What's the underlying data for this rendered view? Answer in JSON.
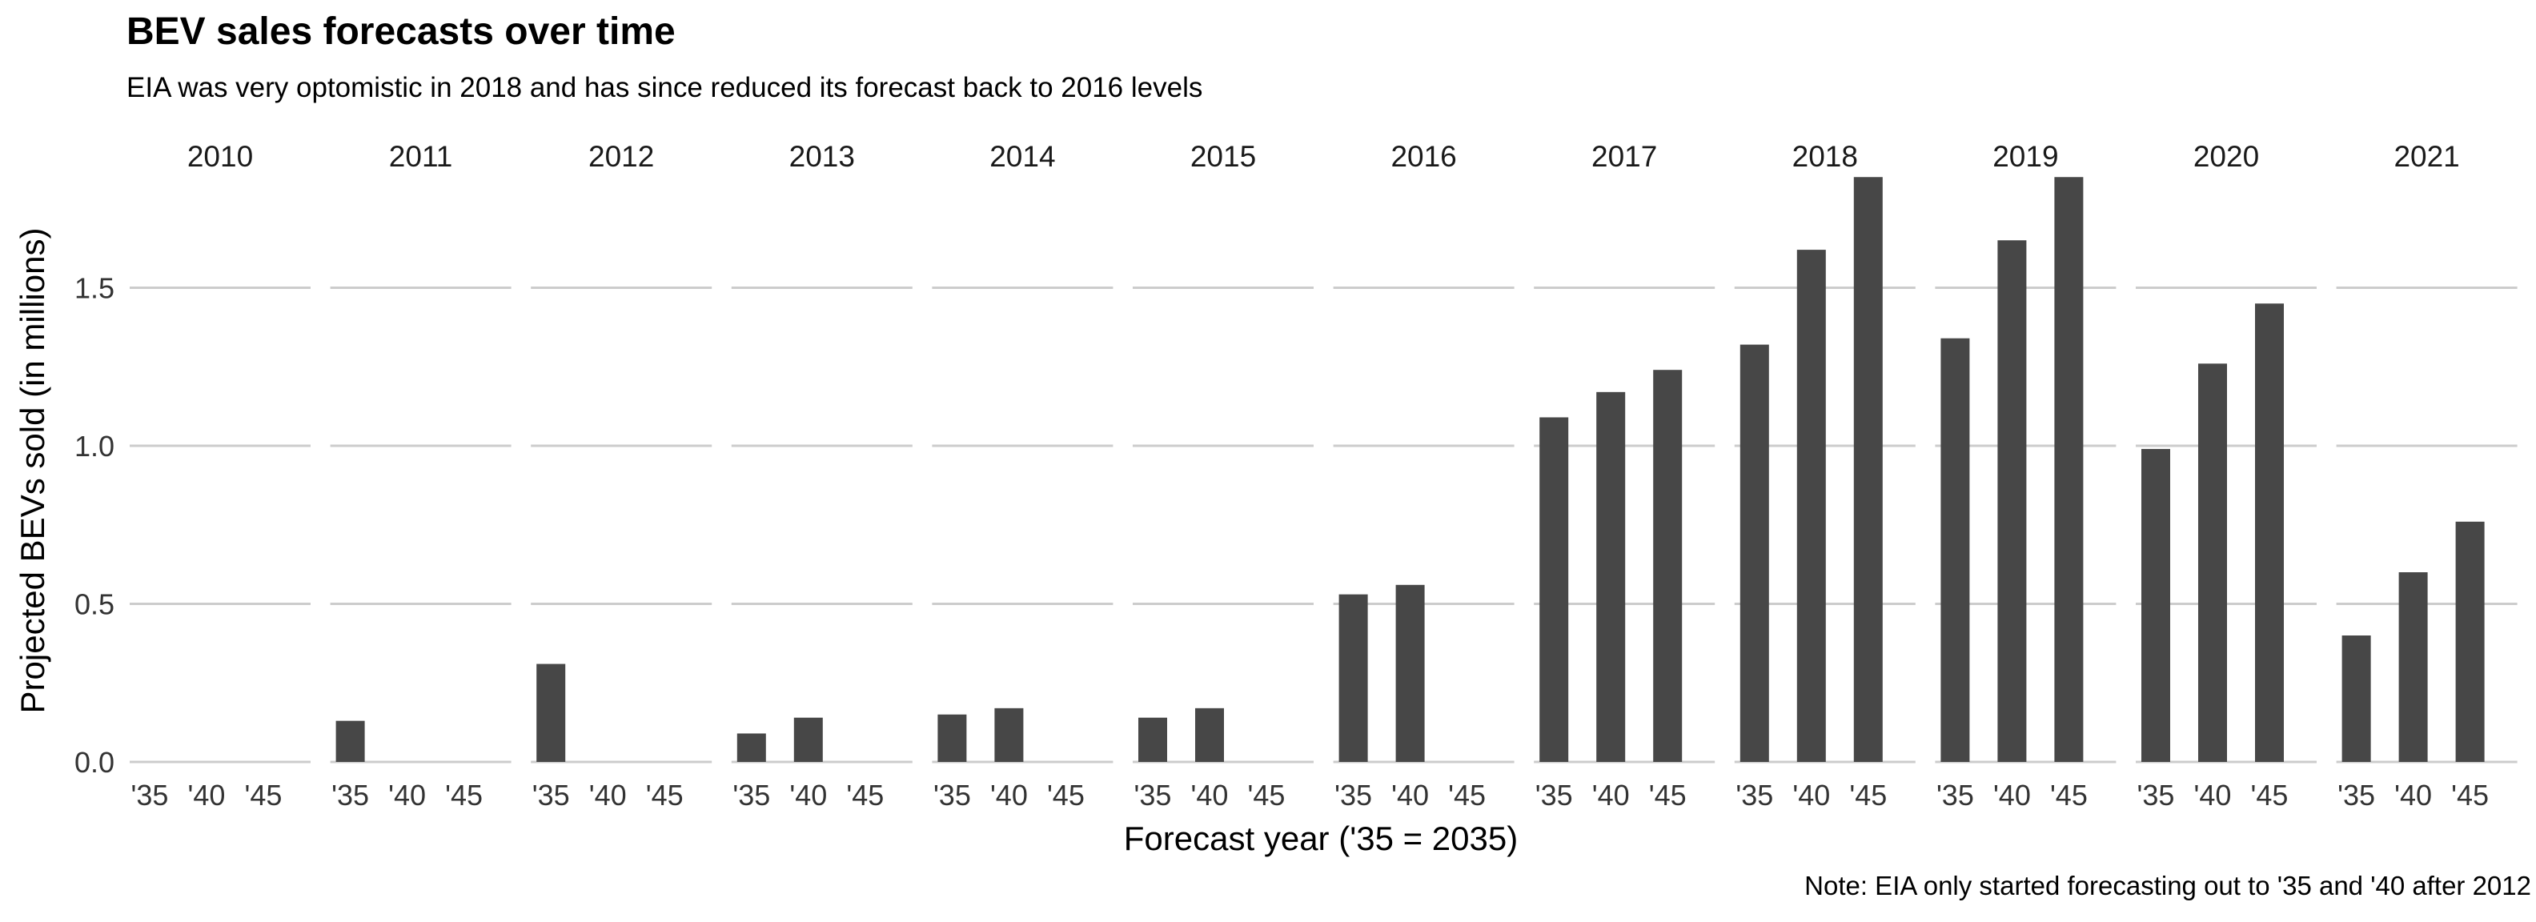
{
  "chart_data": {
    "type": "bar",
    "title": "BEV sales forecasts over time",
    "subtitle": "EIA was very optomistic in 2018 and has since reduced its forecast back to 2016 levels",
    "caption": "Note: EIA only started forecasting out to '35 and '40 after 2012",
    "xlabel": "Forecast year ('35 = 2035)",
    "ylabel": "Projected BEVs sold (in millions)",
    "ylim": [
      0,
      1.85
    ],
    "yticks": [
      0,
      0.5,
      1,
      1.5
    ],
    "ytick_labels": [
      "0.0",
      "0.5",
      "1.0",
      "1.5"
    ],
    "categories": [
      "'35",
      "'40",
      "'45"
    ],
    "grid": "horizontal",
    "bar_color": "#474747",
    "panels": [
      {
        "label": "2010",
        "values": [
          null,
          null,
          null
        ]
      },
      {
        "label": "2011",
        "values": [
          0.13,
          null,
          null
        ]
      },
      {
        "label": "2012",
        "values": [
          0.31,
          null,
          null
        ]
      },
      {
        "label": "2013",
        "values": [
          0.09,
          0.14,
          null
        ]
      },
      {
        "label": "2014",
        "values": [
          0.15,
          0.17,
          null
        ]
      },
      {
        "label": "2015",
        "values": [
          0.14,
          0.17,
          null
        ]
      },
      {
        "label": "2016",
        "values": [
          0.53,
          0.56,
          null
        ]
      },
      {
        "label": "2017",
        "values": [
          1.09,
          1.17,
          1.24
        ]
      },
      {
        "label": "2018",
        "values": [
          1.32,
          1.62,
          1.85
        ]
      },
      {
        "label": "2019",
        "values": [
          1.34,
          1.65,
          1.85
        ]
      },
      {
        "label": "2020",
        "values": [
          0.99,
          1.26,
          1.45
        ]
      },
      {
        "label": "2021",
        "values": [
          0.4,
          0.6,
          0.76
        ]
      }
    ]
  }
}
